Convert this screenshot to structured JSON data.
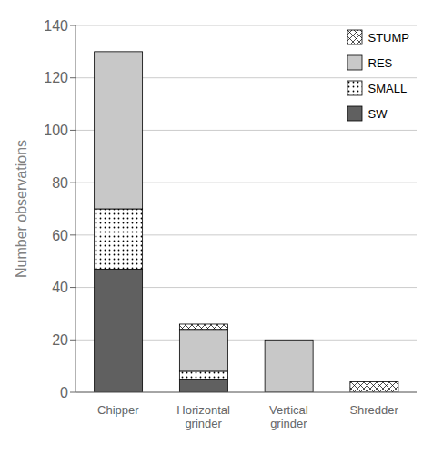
{
  "chart_data": {
    "type": "bar",
    "stacked": true,
    "categories": [
      "Chipper",
      "Horizontal\ngrinder",
      "Vertical\ngrinder",
      "Shredder"
    ],
    "series": [
      {
        "name": "SW",
        "color": "#606060",
        "values": [
          47,
          5,
          0,
          0
        ]
      },
      {
        "name": "SMALL",
        "color": "#ffffff",
        "values": [
          23,
          3,
          0,
          0
        ]
      },
      {
        "name": "RES",
        "color": "#c8c8c8",
        "values": [
          60,
          16,
          20,
          0
        ]
      },
      {
        "name": "STUMP",
        "color": "#ffffff",
        "values": [
          0,
          2,
          0,
          4
        ]
      }
    ],
    "ylabel": "Number observations",
    "ylim": [
      0,
      140
    ],
    "yticks": [
      0,
      20,
      40,
      60,
      80,
      100,
      120,
      140
    ],
    "grid": true,
    "legend": "upper right"
  }
}
